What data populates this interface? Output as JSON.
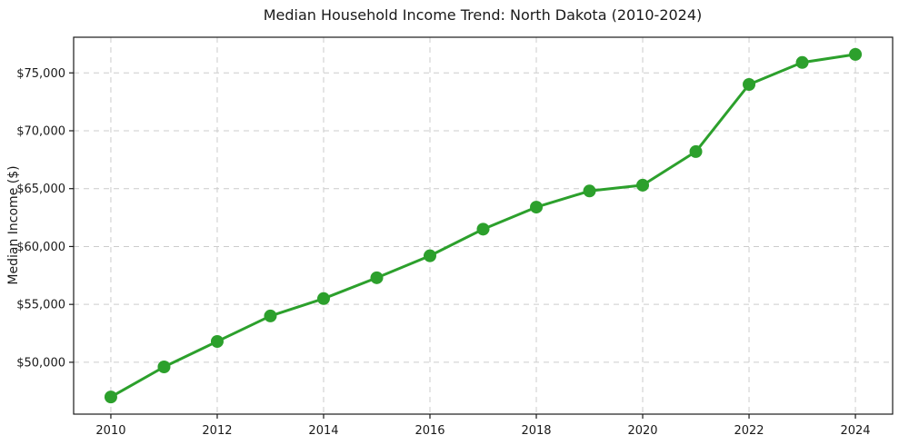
{
  "chart_data": {
    "type": "line",
    "title": "Median Household Income Trend: North Dakota (2010-2024)",
    "xlabel": "",
    "ylabel": "Median Income ($)",
    "x": [
      2010,
      2011,
      2012,
      2013,
      2014,
      2015,
      2016,
      2017,
      2018,
      2019,
      2020,
      2021,
      2022,
      2023,
      2024
    ],
    "series": [
      {
        "name": "Median Household Income",
        "values": [
          47000,
          49600,
          51800,
          54000,
          55500,
          57300,
          59200,
          61500,
          63400,
          64800,
          65300,
          68200,
          74000,
          75900,
          76600
        ]
      }
    ],
    "xlim": [
      2009.3,
      2024.7
    ],
    "ylim": [
      45520,
      78080
    ],
    "x_ticks": [
      2010,
      2012,
      2014,
      2016,
      2018,
      2020,
      2022,
      2024
    ],
    "x_tick_labels": [
      "2010",
      "2012",
      "2014",
      "2016",
      "2018",
      "2020",
      "2022",
      "2024"
    ],
    "y_ticks": [
      50000,
      55000,
      60000,
      65000,
      70000,
      75000
    ],
    "y_tick_labels": [
      "$50,000",
      "$55,000",
      "$60,000",
      "$65,000",
      "$70,000",
      "$75,000"
    ],
    "grid": true,
    "grid_style": "dashed",
    "legend": "none",
    "colors": {
      "line": "#2ca02c",
      "marker": "#2ca02c",
      "grid": "#cccccc",
      "frame": "#1a1a1a",
      "background": "#ffffff",
      "text": "#1a1a1a"
    }
  }
}
